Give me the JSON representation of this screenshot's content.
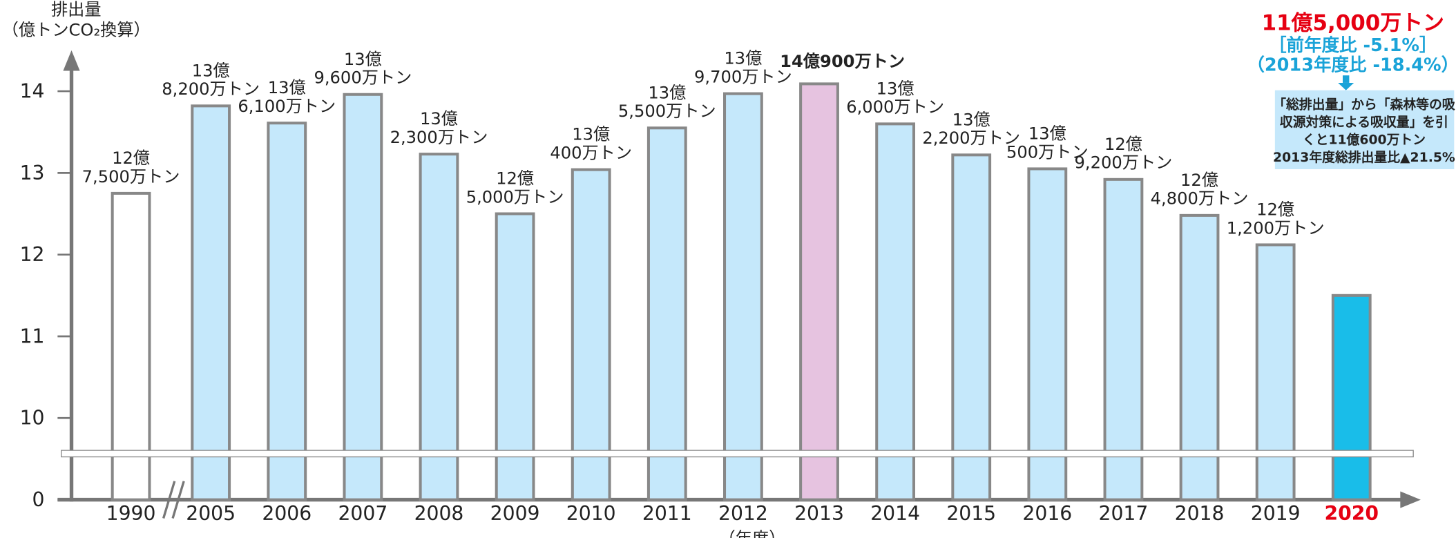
{
  "chart_data": {
    "type": "bar",
    "y_label": [
      "排出量",
      "（億トンCO₂換算）"
    ],
    "x_label": "（年度）",
    "categories": [
      "1990",
      "2005",
      "2006",
      "2007",
      "2008",
      "2009",
      "2010",
      "2011",
      "2012",
      "2013",
      "2014",
      "2015",
      "2016",
      "2017",
      "2018",
      "2019",
      "2020"
    ],
    "values": [
      12.75,
      13.82,
      13.61,
      13.96,
      13.23,
      12.5,
      13.04,
      13.55,
      13.97,
      14.09,
      13.6,
      13.22,
      13.05,
      12.92,
      12.48,
      12.12,
      11.5
    ],
    "value_labels": [
      [
        "12億",
        "7,500万トン"
      ],
      [
        "13億",
        "8,200万トン"
      ],
      [
        "13億",
        "6,100万トン"
      ],
      [
        "13億",
        "9,600万トン"
      ],
      [
        "13億",
        "2,300万トン"
      ],
      [
        "12億",
        "5,000万トン"
      ],
      [
        "13億",
        "400万トン"
      ],
      [
        "13億",
        "5,500万トン"
      ],
      [
        "13億",
        "9,700万トン"
      ],
      [
        "14億900万トン"
      ],
      [
        "13億",
        "6,000万トン"
      ],
      [
        "13億",
        "2,200万トン"
      ],
      [
        "13億",
        "500万トン"
      ],
      [
        "12億",
        "9,200万トン"
      ],
      [
        "12億",
        "4,800万トン"
      ],
      [
        "12億",
        "1,200万トン"
      ],
      [
        "11億5,000万トン"
      ]
    ],
    "colors": [
      "#ffffff",
      "#c5e8fb",
      "#c5e8fb",
      "#c5e8fb",
      "#c5e8fb",
      "#c5e8fb",
      "#c5e8fb",
      "#c5e8fb",
      "#c5e8fb",
      "#e6c3e0",
      "#c5e8fb",
      "#c5e8fb",
      "#c5e8fb",
      "#c5e8fb",
      "#c5e8fb",
      "#c5e8fb",
      "#19bde9"
    ],
    "latest_color": "#e60012",
    "annotation_color": "#1aa3d8",
    "annotations": [
      "［前年度比 -5.1%］",
      "（2013年度比 -18.4%）"
    ],
    "note": [
      "「総排出量」から「森林等の吸",
      "収源対策による吸収量」を引",
      "くと11億600万トン",
      "2013年度総排出量比▲21.5%"
    ],
    "ylim": [
      0,
      14.5
    ],
    "yticks": [
      0,
      10,
      11,
      12,
      13,
      14
    ],
    "axis_break": true
  }
}
